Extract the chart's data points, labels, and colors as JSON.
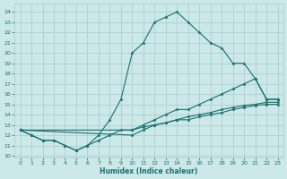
{
  "xlabel": "Humidex (Indice chaleur)",
  "bg_color": "#cce8e8",
  "line_color": "#1a7070",
  "grid_color": "#a8cccc",
  "xlim": [
    -0.5,
    23.5
  ],
  "ylim": [
    9.8,
    24.8
  ],
  "yticks": [
    10,
    11,
    12,
    13,
    14,
    15,
    16,
    17,
    18,
    19,
    20,
    21,
    22,
    23,
    24
  ],
  "xticks": [
    0,
    1,
    2,
    3,
    4,
    5,
    6,
    7,
    8,
    9,
    10,
    11,
    12,
    13,
    14,
    15,
    16,
    17,
    18,
    19,
    20,
    21,
    22,
    23
  ],
  "lines": [
    {
      "x": [
        0,
        1,
        2,
        3,
        4,
        5,
        6,
        7,
        8,
        9,
        10,
        11,
        12,
        13,
        14,
        15,
        16,
        17,
        18,
        19,
        20,
        21,
        22,
        23
      ],
      "y": [
        12.5,
        12,
        11.5,
        11.5,
        11,
        10.5,
        11,
        12,
        13.5,
        15.5,
        20,
        21,
        23,
        23.5,
        24,
        23,
        22,
        21,
        20.5,
        19,
        19,
        17.5,
        15.5,
        15.5
      ]
    },
    {
      "x": [
        0,
        10,
        11,
        12,
        13,
        14,
        15,
        16,
        17,
        18,
        19,
        20,
        21,
        22,
        23
      ],
      "y": [
        12.5,
        12.5,
        13,
        13.5,
        14,
        14.5,
        14.5,
        15,
        15.5,
        16,
        16.5,
        17,
        17.5,
        15.5,
        15.5
      ]
    },
    {
      "x": [
        0,
        10,
        11,
        12,
        13,
        14,
        15,
        16,
        17,
        18,
        19,
        20,
        21,
        22,
        23
      ],
      "y": [
        12.5,
        12.0,
        12.5,
        13.0,
        13.2,
        13.5,
        13.8,
        14.0,
        14.2,
        14.5,
        14.7,
        14.9,
        15.0,
        15.2,
        15.2
      ]
    },
    {
      "x": [
        0,
        1,
        2,
        3,
        4,
        5,
        6,
        7,
        8,
        9,
        10,
        11,
        12,
        13,
        14,
        15,
        16,
        17,
        18,
        19,
        20,
        21,
        22,
        23
      ],
      "y": [
        12.5,
        12,
        11.5,
        11.5,
        11,
        10.5,
        11,
        11.5,
        12,
        12.5,
        12.5,
        12.8,
        13.0,
        13.2,
        13.5,
        13.5,
        13.8,
        14.0,
        14.2,
        14.5,
        14.7,
        14.9,
        15.0,
        15.0
      ]
    }
  ]
}
